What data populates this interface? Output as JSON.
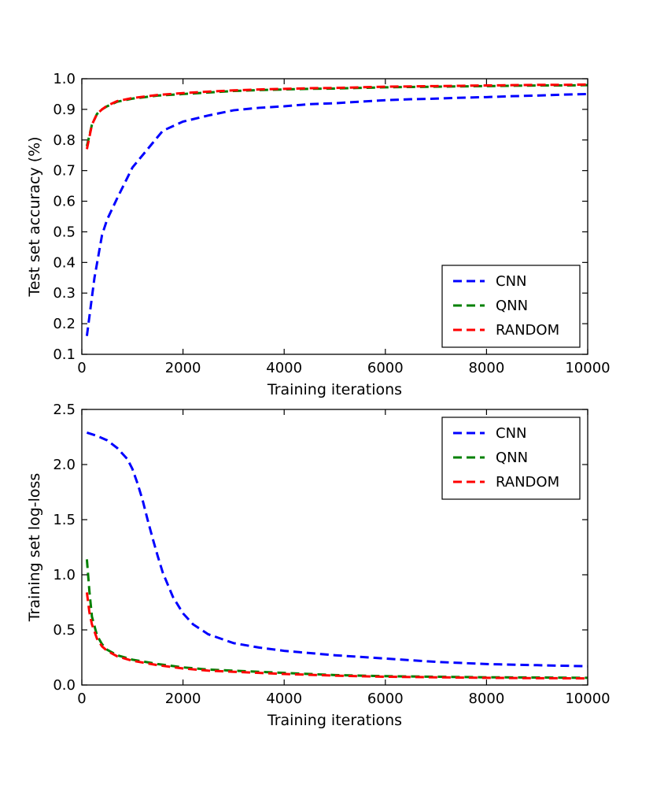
{
  "chart_data": [
    {
      "type": "line",
      "title": "",
      "xlabel": "Training iterations",
      "ylabel": "Test set accuracy (%)",
      "xlim": [
        0,
        10000
      ],
      "ylim": [
        0.1,
        1.0
      ],
      "xticks": [
        0,
        2000,
        4000,
        6000,
        8000,
        10000
      ],
      "yticks": [
        0.1,
        0.2,
        0.3,
        0.4,
        0.5,
        0.6,
        0.7,
        0.8,
        0.9,
        1.0
      ],
      "ytick_labels": [
        "0.1",
        "0.2",
        "0.3",
        "0.4",
        "0.5",
        "0.6",
        "0.7",
        "0.8",
        "0.9",
        "1.0"
      ],
      "grid": false,
      "legend": "bottom-right",
      "series": [
        {
          "name": "CNN",
          "color": "#0000ff",
          "x": [
            100,
            250,
            400,
            500,
            700,
            1000,
            1300,
            1600,
            2000,
            2500,
            3000,
            3500,
            4000,
            4500,
            5000,
            5500,
            6000,
            6500,
            7000,
            7500,
            8000,
            8500,
            9000,
            9500,
            10000
          ],
          "y": [
            0.16,
            0.35,
            0.49,
            0.54,
            0.61,
            0.71,
            0.77,
            0.83,
            0.86,
            0.88,
            0.897,
            0.905,
            0.91,
            0.917,
            0.92,
            0.925,
            0.93,
            0.933,
            0.935,
            0.938,
            0.94,
            0.943,
            0.945,
            0.948,
            0.95
          ]
        },
        {
          "name": "QNN",
          "color": "#008000",
          "x": [
            100,
            200,
            300,
            400,
            500,
            700,
            1000,
            1500,
            2000,
            2500,
            3000,
            3500,
            4000,
            4500,
            5000,
            5500,
            6000,
            6500,
            7000,
            7500,
            8000,
            8500,
            9000,
            9500,
            10000
          ],
          "y": [
            0.78,
            0.85,
            0.885,
            0.9,
            0.91,
            0.925,
            0.935,
            0.945,
            0.95,
            0.955,
            0.96,
            0.963,
            0.965,
            0.967,
            0.968,
            0.97,
            0.972,
            0.973,
            0.974,
            0.975,
            0.976,
            0.977,
            0.978,
            0.978,
            0.979
          ]
        },
        {
          "name": "RANDOM",
          "color": "#ff0000",
          "x": [
            100,
            200,
            300,
            400,
            500,
            700,
            1000,
            1500,
            2000,
            2500,
            3000,
            3500,
            4000,
            4500,
            5000,
            5500,
            6000,
            6500,
            7000,
            7500,
            8000,
            8500,
            9000,
            9500,
            10000
          ],
          "y": [
            0.77,
            0.85,
            0.885,
            0.9,
            0.912,
            0.927,
            0.937,
            0.947,
            0.953,
            0.958,
            0.962,
            0.965,
            0.967,
            0.969,
            0.97,
            0.972,
            0.974,
            0.975,
            0.976,
            0.977,
            0.978,
            0.979,
            0.98,
            0.98,
            0.981
          ]
        }
      ]
    },
    {
      "type": "line",
      "title": "",
      "xlabel": "Training iterations",
      "ylabel": "Training set log-loss",
      "xlim": [
        0,
        10000
      ],
      "ylim": [
        0.0,
        2.5
      ],
      "xticks": [
        0,
        2000,
        4000,
        6000,
        8000,
        10000
      ],
      "yticks": [
        0.0,
        0.5,
        1.0,
        1.5,
        2.0,
        2.5
      ],
      "ytick_labels": [
        "0.0",
        "0.5",
        "1.0",
        "1.5",
        "2.0",
        "2.5"
      ],
      "grid": false,
      "legend": "top-right",
      "series": [
        {
          "name": "CNN",
          "color": "#0000ff",
          "x": [
            100,
            300,
            500,
            700,
            900,
            1000,
            1100,
            1200,
            1300,
            1400,
            1500,
            1600,
            1800,
            2000,
            2200,
            2500,
            3000,
            3500,
            4000,
            5000,
            6000,
            7000,
            8000,
            9000,
            10000
          ],
          "y": [
            2.29,
            2.26,
            2.22,
            2.15,
            2.05,
            1.96,
            1.83,
            1.68,
            1.5,
            1.33,
            1.17,
            1.02,
            0.8,
            0.65,
            0.55,
            0.46,
            0.38,
            0.34,
            0.31,
            0.27,
            0.24,
            0.21,
            0.19,
            0.18,
            0.17
          ]
        },
        {
          "name": "QNN",
          "color": "#008000",
          "x": [
            100,
            150,
            200,
            300,
            400,
            500,
            700,
            1000,
            1500,
            2000,
            2500,
            3000,
            4000,
            5000,
            6000,
            7000,
            8000,
            9000,
            10000
          ],
          "y": [
            1.14,
            0.85,
            0.62,
            0.45,
            0.37,
            0.32,
            0.27,
            0.23,
            0.19,
            0.16,
            0.14,
            0.13,
            0.11,
            0.09,
            0.08,
            0.075,
            0.07,
            0.068,
            0.065
          ]
        },
        {
          "name": "RANDOM",
          "color": "#ff0000",
          "x": [
            100,
            150,
            200,
            300,
            400,
            500,
            700,
            1000,
            1500,
            2000,
            2500,
            3000,
            4000,
            5000,
            6000,
            7000,
            8000,
            9000,
            10000
          ],
          "y": [
            0.84,
            0.66,
            0.55,
            0.42,
            0.35,
            0.31,
            0.26,
            0.22,
            0.18,
            0.15,
            0.13,
            0.12,
            0.1,
            0.085,
            0.075,
            0.07,
            0.065,
            0.062,
            0.06
          ]
        }
      ]
    }
  ]
}
